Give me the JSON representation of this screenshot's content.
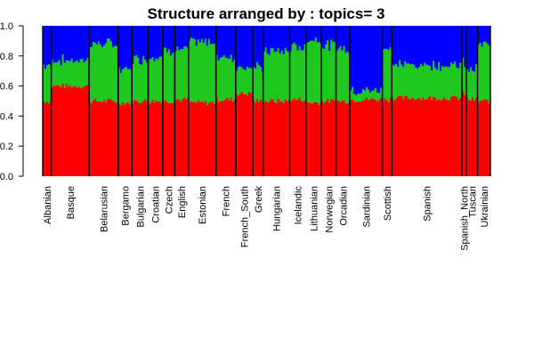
{
  "chart_data": {
    "type": "bar",
    "title": "Structure arranged by  : topics= 3",
    "xlabel": "",
    "ylabel": "",
    "ylim": [
      0,
      1
    ],
    "yticks": [
      "0.0",
      "0.2",
      "0.4",
      "0.6",
      "0.8",
      "1.0"
    ],
    "stacked": true,
    "grid": false,
    "legend": "none",
    "colors": [
      "#ff0000",
      "#1ec81e",
      "#0000ff"
    ],
    "topic_order_bottom_to_top": [
      "red",
      "green",
      "blue"
    ],
    "categories": [
      "Albanian",
      "Basque",
      "Belarusian",
      "Bergamo",
      "Bulgarian",
      "Croatian",
      "Czech",
      "English",
      "Estonian",
      "French",
      "French_South",
      "Greek",
      "Hungarian",
      "Icelandic",
      "Lithuanian",
      "Norwegian",
      "Orcadian",
      "Sardinian",
      "Scottish",
      "Spanish",
      "Spanish_North",
      "Tuscan",
      "Ukrainian"
    ],
    "series": [
      {
        "values": [
          0.5,
          0.6,
          0.5,
          0.49,
          0.5,
          0.5,
          0.5,
          0.51,
          0.49,
          0.51,
          0.55,
          0.5,
          0.5,
          0.51,
          0.49,
          0.5,
          0.5,
          0.51,
          0.51,
          0.52,
          0.55,
          0.51,
          0.5
        ]
      },
      {
        "values": [
          0.24,
          0.17,
          0.38,
          0.22,
          0.28,
          0.3,
          0.34,
          0.33,
          0.4,
          0.28,
          0.18,
          0.22,
          0.33,
          0.35,
          0.42,
          0.37,
          0.35,
          0.06,
          0.35,
          0.22,
          0.2,
          0.2,
          0.37
        ]
      },
      {
        "values": [
          0.26,
          0.23,
          0.12,
          0.29,
          0.22,
          0.2,
          0.16,
          0.16,
          0.11,
          0.21,
          0.27,
          0.28,
          0.17,
          0.14,
          0.09,
          0.13,
          0.15,
          0.43,
          0.14,
          0.26,
          0.25,
          0.29,
          0.13
        ]
      }
    ]
  }
}
